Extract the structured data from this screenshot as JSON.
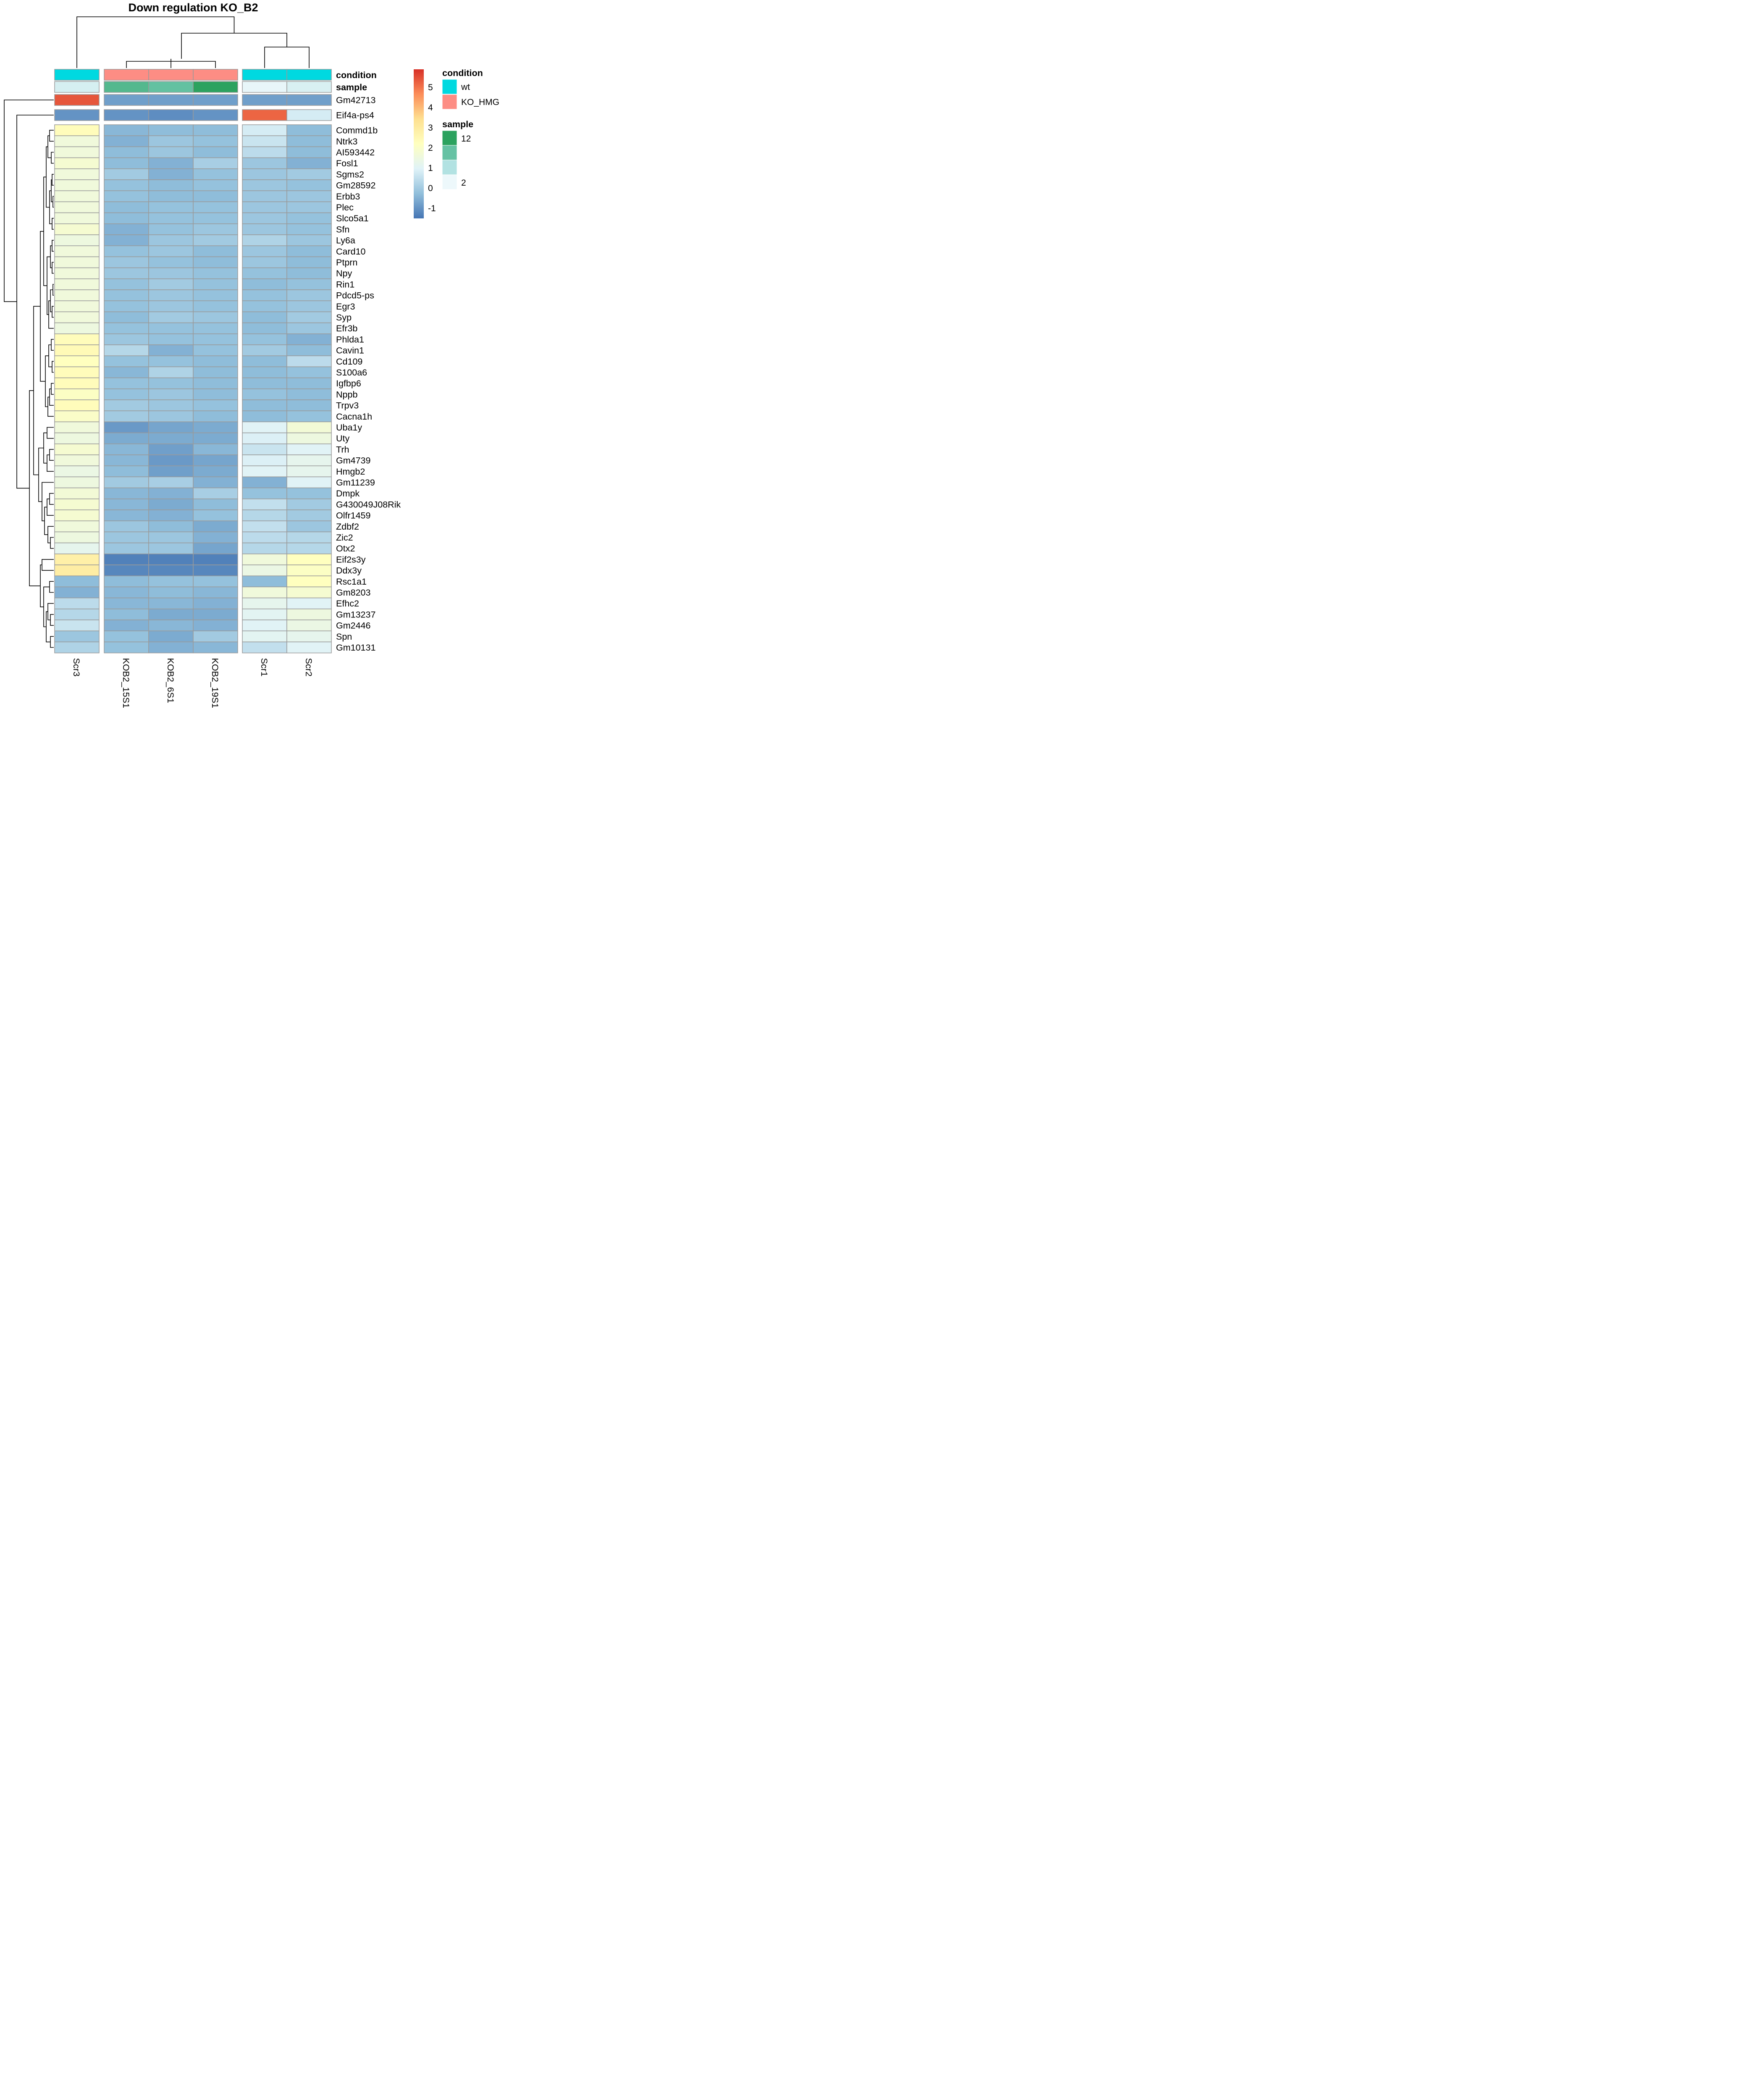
{
  "chart_data": {
    "type": "heatmap",
    "title": "Down regulation KO_B2",
    "columns": [
      "Scr3",
      "KOB2_15S1",
      "KOB2_6S1",
      "KOB2_19S1",
      "Scr1",
      "Scr2"
    ],
    "column_gaps_after": [
      1,
      4
    ],
    "row_gaps_after": [
      0,
      1
    ],
    "annotations": {
      "condition": [
        "wt",
        "KO_HMG",
        "KO_HMG",
        "KO_HMG",
        "wt",
        "wt"
      ],
      "sample": [
        2.5,
        9.5,
        8.5,
        12,
        1.3,
        2.3
      ]
    },
    "annotation_labels": [
      "condition",
      "sample"
    ],
    "rows": [
      {
        "gene": "Gm42713",
        "values": [
          5.4,
          -0.8,
          -0.8,
          -0.8,
          -0.8,
          -0.8
        ]
      },
      {
        "gene": "Eif4a-ps4",
        "values": [
          -1.0,
          -1.0,
          -1.1,
          -1.0,
          5.2,
          0.8
        ]
      },
      {
        "gene": "Commd1b",
        "values": [
          2.3,
          -0.4,
          -0.3,
          -0.3,
          0.8,
          -0.3
        ]
      },
      {
        "gene": "Ntrk3",
        "values": [
          1.6,
          -0.5,
          -0.1,
          -0.2,
          0.6,
          -0.3
        ]
      },
      {
        "gene": "AI593442",
        "values": [
          1.6,
          -0.3,
          -0.1,
          -0.3,
          0.4,
          -0.3
        ]
      },
      {
        "gene": "Fosl1",
        "values": [
          1.8,
          -0.3,
          -0.5,
          0.1,
          -0.1,
          -0.5
        ]
      },
      {
        "gene": "Sgms2",
        "values": [
          1.6,
          0.0,
          -0.5,
          -0.2,
          -0.1,
          0.0
        ]
      },
      {
        "gene": "Gm28592",
        "values": [
          1.6,
          -0.2,
          -0.3,
          -0.2,
          -0.1,
          -0.2
        ]
      },
      {
        "gene": "Erbb3",
        "values": [
          1.6,
          -0.2,
          -0.3,
          -0.3,
          -0.1,
          -0.1
        ]
      },
      {
        "gene": "Plec",
        "values": [
          1.6,
          -0.3,
          -0.2,
          -0.2,
          -0.1,
          -0.1
        ]
      },
      {
        "gene": "Slco5a1",
        "values": [
          1.6,
          -0.3,
          -0.2,
          -0.2,
          -0.1,
          -0.2
        ]
      },
      {
        "gene": "Sfn",
        "values": [
          1.8,
          -0.5,
          -0.2,
          -0.1,
          -0.1,
          -0.2
        ]
      },
      {
        "gene": "Ly6a",
        "values": [
          1.5,
          -0.5,
          -0.1,
          0.0,
          0.2,
          -0.1
        ]
      },
      {
        "gene": "Card10",
        "values": [
          1.6,
          -0.2,
          -0.1,
          -0.3,
          -0.1,
          -0.3
        ]
      },
      {
        "gene": "Ptprn",
        "values": [
          1.6,
          -0.1,
          -0.2,
          -0.3,
          -0.1,
          -0.3
        ]
      },
      {
        "gene": "Npy",
        "values": [
          1.6,
          -0.1,
          -0.1,
          -0.2,
          -0.2,
          -0.3
        ]
      },
      {
        "gene": "Rin1",
        "values": [
          1.6,
          -0.2,
          0.0,
          -0.2,
          -0.3,
          -0.2
        ]
      },
      {
        "gene": "Pdcd5-ps",
        "values": [
          1.6,
          -0.2,
          -0.1,
          -0.2,
          -0.2,
          -0.1
        ]
      },
      {
        "gene": "Egr3",
        "values": [
          1.6,
          -0.2,
          -0.1,
          -0.2,
          -0.2,
          -0.1
        ]
      },
      {
        "gene": "Syp",
        "values": [
          1.6,
          -0.3,
          0.0,
          -0.1,
          -0.3,
          0.0
        ]
      },
      {
        "gene": "Efr3b",
        "values": [
          1.5,
          -0.2,
          -0.2,
          -0.2,
          -0.3,
          -0.1
        ]
      },
      {
        "gene": "Phlda1",
        "values": [
          2.3,
          -0.1,
          -0.2,
          -0.2,
          -0.2,
          -0.5
        ]
      },
      {
        "gene": "Cavin1",
        "values": [
          2.4,
          0.3,
          -0.5,
          -0.2,
          0.0,
          -0.3
        ]
      },
      {
        "gene": "Cd109",
        "values": [
          2.2,
          -0.2,
          -0.2,
          -0.3,
          -0.3,
          0.4
        ]
      },
      {
        "gene": "S100a6",
        "values": [
          2.3,
          -0.4,
          0.2,
          -0.3,
          -0.3,
          -0.2
        ]
      },
      {
        "gene": "Igfbp6",
        "values": [
          2.3,
          -0.2,
          -0.2,
          -0.3,
          -0.3,
          -0.3
        ]
      },
      {
        "gene": "Nppb",
        "values": [
          2.1,
          -0.2,
          -0.1,
          -0.3,
          -0.2,
          -0.3
        ]
      },
      {
        "gene": "Trpv3",
        "values": [
          2.3,
          0.0,
          -0.1,
          -0.2,
          -0.3,
          -0.3
        ]
      },
      {
        "gene": "Cacna1h",
        "values": [
          2.0,
          0.0,
          -0.1,
          -0.3,
          -0.3,
          -0.2
        ]
      },
      {
        "gene": "Uba1y",
        "values": [
          1.6,
          -0.9,
          -0.7,
          -0.6,
          1.0,
          1.7
        ]
      },
      {
        "gene": "Uty",
        "values": [
          1.5,
          -0.6,
          -0.6,
          -0.6,
          0.9,
          1.5
        ]
      },
      {
        "gene": "Trh",
        "values": [
          1.8,
          -0.4,
          -0.8,
          -0.4,
          0.6,
          1.0
        ]
      },
      {
        "gene": "Gm4739",
        "values": [
          1.6,
          -0.4,
          -0.9,
          -0.7,
          0.9,
          1.2
        ]
      },
      {
        "gene": "Hmgb2",
        "values": [
          1.4,
          -0.3,
          -0.8,
          -0.6,
          1.0,
          1.2
        ]
      },
      {
        "gene": "Gm11239",
        "values": [
          1.5,
          0.0,
          0.1,
          -0.5,
          -0.5,
          1.0
        ]
      },
      {
        "gene": "Dmpk",
        "values": [
          1.7,
          -0.4,
          -0.5,
          0.1,
          -0.2,
          -0.2
        ]
      },
      {
        "gene": "G430049J08Rik",
        "values": [
          1.8,
          -0.4,
          -0.6,
          -0.3,
          0.5,
          0.0
        ]
      },
      {
        "gene": "Olfr1459",
        "values": [
          1.8,
          -0.4,
          -0.5,
          -0.2,
          0.3,
          0.0
        ]
      },
      {
        "gene": "Zdbf2",
        "values": [
          1.6,
          -0.1,
          -0.3,
          -0.6,
          0.5,
          -0.1
        ]
      },
      {
        "gene": "Zic2",
        "values": [
          1.5,
          -0.1,
          -0.1,
          -0.5,
          0.4,
          0.3
        ]
      },
      {
        "gene": "Otx2",
        "values": [
          1.2,
          -0.1,
          -0.1,
          -0.7,
          0.3,
          0.3
        ]
      },
      {
        "gene": "Eif2s3y",
        "values": [
          2.8,
          -1.3,
          -1.3,
          -1.3,
          1.6,
          2.2
        ]
      },
      {
        "gene": "Ddx3y",
        "values": [
          2.9,
          -1.2,
          -1.2,
          -1.2,
          1.4,
          2.1
        ]
      },
      {
        "gene": "Rsc1a1",
        "values": [
          -0.3,
          -0.3,
          -0.2,
          -0.2,
          -0.3,
          2.2
        ]
      },
      {
        "gene": "Gm8203",
        "values": [
          -0.5,
          -0.4,
          -0.3,
          -0.4,
          1.6,
          1.8
        ]
      },
      {
        "gene": "Efhc2",
        "values": [
          0.4,
          -0.4,
          -0.4,
          -0.5,
          1.2,
          1.0
        ]
      },
      {
        "gene": "Gm13237",
        "values": [
          0.3,
          -0.3,
          -0.6,
          -0.6,
          1.1,
          1.5
        ]
      },
      {
        "gene": "Gm2446",
        "values": [
          0.6,
          -0.5,
          -0.4,
          -0.5,
          1.0,
          1.4
        ]
      },
      {
        "gene": "Spn",
        "values": [
          -0.1,
          -0.2,
          -0.6,
          0.0,
          1.1,
          1.2
        ]
      },
      {
        "gene": "Gm10131",
        "values": [
          0.2,
          -0.2,
          -0.5,
          -0.4,
          0.5,
          1.0
        ]
      }
    ],
    "color_scale": {
      "min": -1.5,
      "max": 5.9,
      "stops": [
        "#4575b4",
        "#91bfdb",
        "#e0f3f8",
        "#ffffbf",
        "#fee090",
        "#fc8d59",
        "#d73027"
      ],
      "ticks": [
        -1,
        0,
        1,
        2,
        3,
        4,
        5
      ]
    },
    "legends": {
      "condition": {
        "title": "condition",
        "items": [
          {
            "label": "wt",
            "color": "#00d9e0"
          },
          {
            "label": "KO_HMG",
            "color": "#fd8d84"
          }
        ]
      },
      "sample": {
        "title": "sample",
        "ticks": [
          "12",
          "2"
        ],
        "colors": [
          "#2ca25f",
          "#66c2a4",
          "#b2e2e2",
          "#edf8fb"
        ]
      }
    }
  }
}
